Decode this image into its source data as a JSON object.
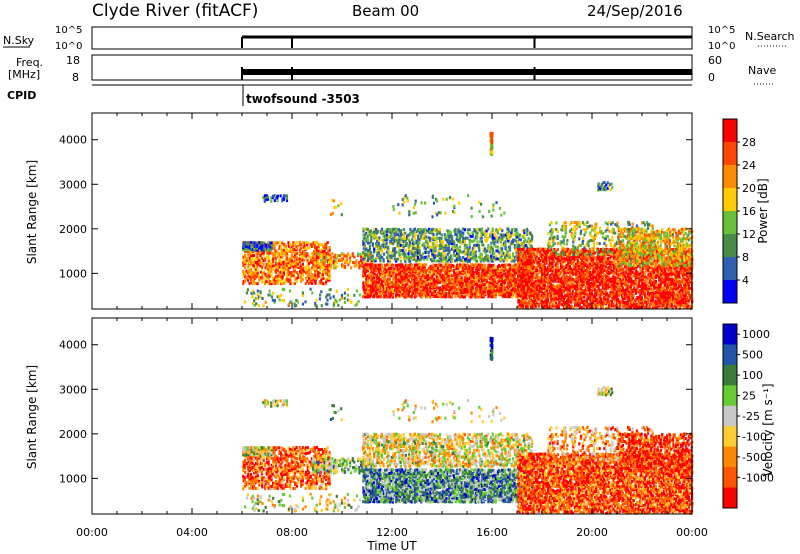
{
  "header": {
    "station": "Clyde River (fitACF)",
    "beam": "Beam 00",
    "date": "24/Sep/2016"
  },
  "summary_panels": {
    "nsky": {
      "label": "N.Sky",
      "ticks": [
        "10^5",
        "10^0"
      ],
      "right_ticks": [
        "10^5",
        "10^0"
      ],
      "right_label": "N.Search"
    },
    "freq": {
      "label_line1": "Freq.",
      "label_line2": "[MHz]",
      "ticks": [
        "18",
        "8"
      ],
      "right_ticks": [
        "60",
        "0"
      ],
      "right_label": "Nave"
    },
    "cpid": {
      "label": "CPID",
      "program": "twofsound -3503"
    }
  },
  "colors": {
    "power": [
      "#0000ff",
      "#2f5fb0",
      "#4a8a4a",
      "#6abf3a",
      "#ffcc00",
      "#ff8c00",
      "#ff4500",
      "#ff0000"
    ],
    "velocity": [
      "#0000cc",
      "#2255aa",
      "#3a7a3a",
      "#66cc33",
      "#c8c8c8",
      "#ffcc33",
      "#ff8800",
      "#ff5500",
      "#ff0000"
    ]
  },
  "chart_data": [
    {
      "type": "heatmap",
      "title": "Power",
      "ylabel": "Slant Range [km]",
      "xlabel": "Time UT",
      "x_ticks": [
        "00:00",
        "04:00",
        "08:00",
        "12:00",
        "16:00",
        "20:00",
        "00:00"
      ],
      "y_ticks": [
        1000,
        2000,
        3000,
        4000
      ],
      "ylim": [
        200,
        4600
      ],
      "colorbar": {
        "label": "Power [dB]",
        "ticks": [
          "28",
          "24",
          "20",
          "16",
          "12",
          "8",
          "4"
        ]
      }
    },
    {
      "type": "heatmap",
      "title": "Velocity",
      "ylabel": "Slant Range [km]",
      "xlabel": "Time UT",
      "x_ticks": [
        "00:00",
        "04:00",
        "08:00",
        "12:00",
        "16:00",
        "20:00",
        "00:00"
      ],
      "y_ticks": [
        1000,
        2000,
        3000,
        4000
      ],
      "ylim": [
        200,
        4600
      ],
      "colorbar": {
        "label": "Velocity [m s⁻¹]",
        "ticks": [
          "1000",
          "500",
          "100",
          "25",
          "-25",
          "-100",
          "-500",
          "-1000"
        ]
      }
    }
  ]
}
